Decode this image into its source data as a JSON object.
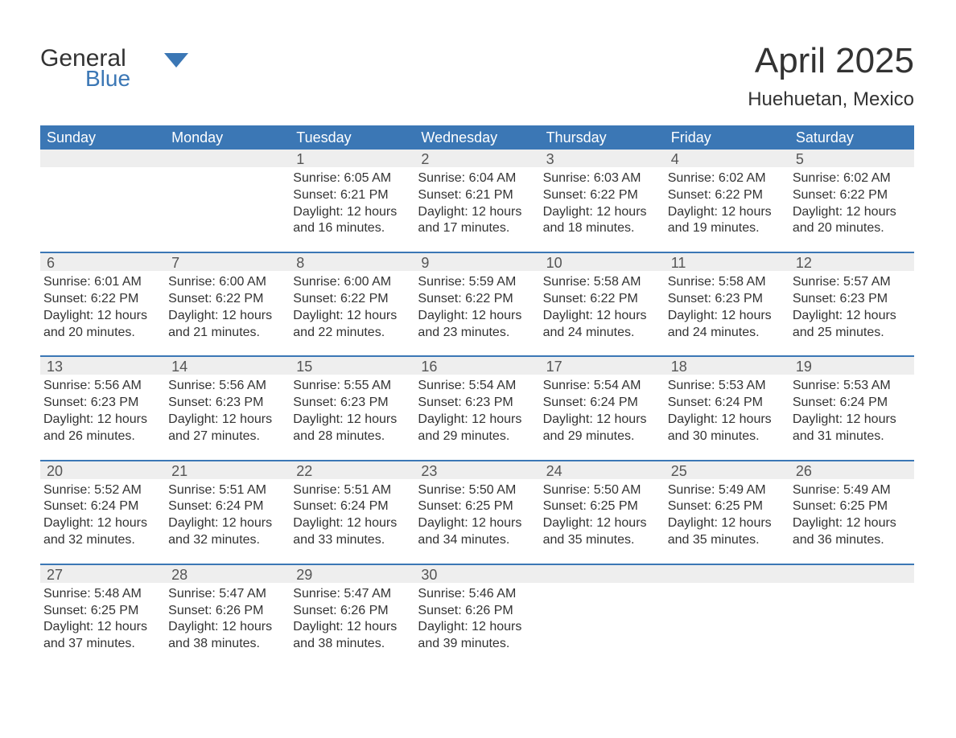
{
  "brand": {
    "text_top": "General",
    "text_bottom": "Blue",
    "color_top": "#333333",
    "color_bottom": "#3b77b5"
  },
  "header": {
    "title": "April 2025",
    "subtitle": "Huehuetan, Mexico"
  },
  "colors": {
    "header_bg": "#3b77b5",
    "header_text": "#ffffff",
    "daynum_bg": "#eeeeee",
    "week_border": "#3b77b5",
    "body_text": "#333333",
    "background": "#ffffff"
  },
  "font": {
    "family": "Arial, Helvetica, sans-serif",
    "title_size": 44,
    "subtitle_size": 24,
    "dow_size": 18,
    "daynum_size": 18,
    "body_size": 16
  },
  "days_of_week": [
    "Sunday",
    "Monday",
    "Tuesday",
    "Wednesday",
    "Thursday",
    "Friday",
    "Saturday"
  ],
  "labels": {
    "sunrise": "Sunrise:",
    "sunset": "Sunset:",
    "daylight_prefix": "Daylight:",
    "and": "and",
    "minutes_suffix": "minutes."
  },
  "weeks": [
    [
      null,
      null,
      {
        "d": "1",
        "sunrise": "6:05 AM",
        "sunset": "6:21 PM",
        "dl_hours": "12 hours",
        "dl_mins": "16"
      },
      {
        "d": "2",
        "sunrise": "6:04 AM",
        "sunset": "6:21 PM",
        "dl_hours": "12 hours",
        "dl_mins": "17"
      },
      {
        "d": "3",
        "sunrise": "6:03 AM",
        "sunset": "6:22 PM",
        "dl_hours": "12 hours",
        "dl_mins": "18"
      },
      {
        "d": "4",
        "sunrise": "6:02 AM",
        "sunset": "6:22 PM",
        "dl_hours": "12 hours",
        "dl_mins": "19"
      },
      {
        "d": "5",
        "sunrise": "6:02 AM",
        "sunset": "6:22 PM",
        "dl_hours": "12 hours",
        "dl_mins": "20"
      }
    ],
    [
      {
        "d": "6",
        "sunrise": "6:01 AM",
        "sunset": "6:22 PM",
        "dl_hours": "12 hours",
        "dl_mins": "20"
      },
      {
        "d": "7",
        "sunrise": "6:00 AM",
        "sunset": "6:22 PM",
        "dl_hours": "12 hours",
        "dl_mins": "21"
      },
      {
        "d": "8",
        "sunrise": "6:00 AM",
        "sunset": "6:22 PM",
        "dl_hours": "12 hours",
        "dl_mins": "22"
      },
      {
        "d": "9",
        "sunrise": "5:59 AM",
        "sunset": "6:22 PM",
        "dl_hours": "12 hours",
        "dl_mins": "23"
      },
      {
        "d": "10",
        "sunrise": "5:58 AM",
        "sunset": "6:22 PM",
        "dl_hours": "12 hours",
        "dl_mins": "24"
      },
      {
        "d": "11",
        "sunrise": "5:58 AM",
        "sunset": "6:23 PM",
        "dl_hours": "12 hours",
        "dl_mins": "24"
      },
      {
        "d": "12",
        "sunrise": "5:57 AM",
        "sunset": "6:23 PM",
        "dl_hours": "12 hours",
        "dl_mins": "25"
      }
    ],
    [
      {
        "d": "13",
        "sunrise": "5:56 AM",
        "sunset": "6:23 PM",
        "dl_hours": "12 hours",
        "dl_mins": "26"
      },
      {
        "d": "14",
        "sunrise": "5:56 AM",
        "sunset": "6:23 PM",
        "dl_hours": "12 hours",
        "dl_mins": "27"
      },
      {
        "d": "15",
        "sunrise": "5:55 AM",
        "sunset": "6:23 PM",
        "dl_hours": "12 hours",
        "dl_mins": "28"
      },
      {
        "d": "16",
        "sunrise": "5:54 AM",
        "sunset": "6:23 PM",
        "dl_hours": "12 hours",
        "dl_mins": "29"
      },
      {
        "d": "17",
        "sunrise": "5:54 AM",
        "sunset": "6:24 PM",
        "dl_hours": "12 hours",
        "dl_mins": "29"
      },
      {
        "d": "18",
        "sunrise": "5:53 AM",
        "sunset": "6:24 PM",
        "dl_hours": "12 hours",
        "dl_mins": "30"
      },
      {
        "d": "19",
        "sunrise": "5:53 AM",
        "sunset": "6:24 PM",
        "dl_hours": "12 hours",
        "dl_mins": "31"
      }
    ],
    [
      {
        "d": "20",
        "sunrise": "5:52 AM",
        "sunset": "6:24 PM",
        "dl_hours": "12 hours",
        "dl_mins": "32"
      },
      {
        "d": "21",
        "sunrise": "5:51 AM",
        "sunset": "6:24 PM",
        "dl_hours": "12 hours",
        "dl_mins": "32"
      },
      {
        "d": "22",
        "sunrise": "5:51 AM",
        "sunset": "6:24 PM",
        "dl_hours": "12 hours",
        "dl_mins": "33"
      },
      {
        "d": "23",
        "sunrise": "5:50 AM",
        "sunset": "6:25 PM",
        "dl_hours": "12 hours",
        "dl_mins": "34"
      },
      {
        "d": "24",
        "sunrise": "5:50 AM",
        "sunset": "6:25 PM",
        "dl_hours": "12 hours",
        "dl_mins": "35"
      },
      {
        "d": "25",
        "sunrise": "5:49 AM",
        "sunset": "6:25 PM",
        "dl_hours": "12 hours",
        "dl_mins": "35"
      },
      {
        "d": "26",
        "sunrise": "5:49 AM",
        "sunset": "6:25 PM",
        "dl_hours": "12 hours",
        "dl_mins": "36"
      }
    ],
    [
      {
        "d": "27",
        "sunrise": "5:48 AM",
        "sunset": "6:25 PM",
        "dl_hours": "12 hours",
        "dl_mins": "37"
      },
      {
        "d": "28",
        "sunrise": "5:47 AM",
        "sunset": "6:26 PM",
        "dl_hours": "12 hours",
        "dl_mins": "38"
      },
      {
        "d": "29",
        "sunrise": "5:47 AM",
        "sunset": "6:26 PM",
        "dl_hours": "12 hours",
        "dl_mins": "38"
      },
      {
        "d": "30",
        "sunrise": "5:46 AM",
        "sunset": "6:26 PM",
        "dl_hours": "12 hours",
        "dl_mins": "39"
      },
      null,
      null,
      null
    ]
  ]
}
